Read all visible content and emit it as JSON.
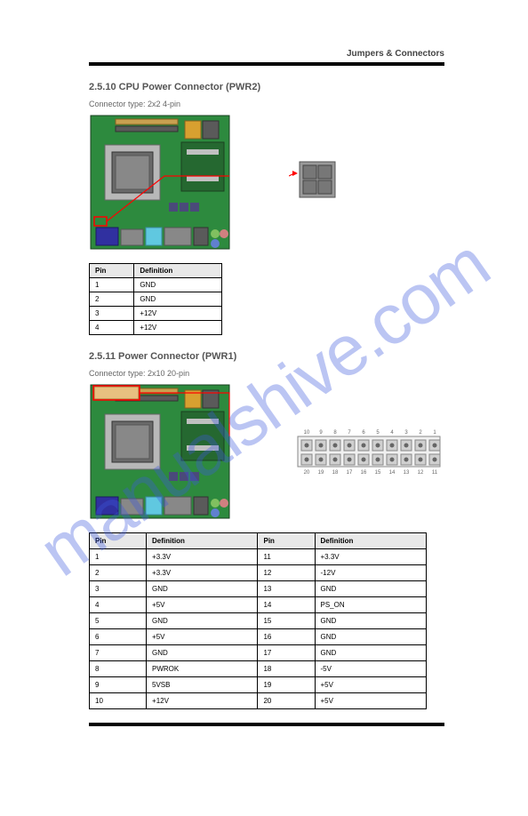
{
  "header": {
    "title": "Jumpers & Connectors"
  },
  "watermark": "manualshive.com",
  "section1": {
    "title": "2.5.10  CPU Power Connector (PWR2)",
    "subtitle": "Connector type: 2x2 4-pin",
    "pcb_color": "#2d8a3e",
    "pcb_dark": "#1e5c2a",
    "socket_color": "#b8b8b8",
    "chip_color": "#5a5a5a",
    "highlight": "#ff0000",
    "arrow_color": "#ff0000",
    "conn_body": "#888888",
    "conn_pin": "#6a6a6a",
    "table": {
      "headers": [
        "Pin",
        "Definition"
      ],
      "rows": [
        [
          "1",
          "GND"
        ],
        [
          "2",
          "GND"
        ],
        [
          "3",
          "+12V"
        ],
        [
          "4",
          "+12V"
        ]
      ]
    }
  },
  "section2": {
    "title": "2.5.11  Power Connector (PWR1)",
    "subtitle": "Connector type: 2x10 20-pin",
    "pcb_color": "#2d8a3e",
    "conn_body": "#e8e8e8",
    "conn_pin": "#888",
    "conn_labels_top": [
      "10",
      "9",
      "8",
      "7",
      "6",
      "5",
      "4",
      "3",
      "2",
      "1"
    ],
    "conn_labels_bot": [
      "20",
      "19",
      "18",
      "17",
      "16",
      "15",
      "14",
      "13",
      "12",
      "11"
    ],
    "table": {
      "headers": [
        "Pin",
        "Definition",
        "Pin",
        "Definition"
      ],
      "rows": [
        [
          "1",
          "+3.3V",
          "11",
          "+3.3V"
        ],
        [
          "2",
          "+3.3V",
          "12",
          "-12V"
        ],
        [
          "3",
          "GND",
          "13",
          "GND"
        ],
        [
          "4",
          "+5V",
          "14",
          "PS_ON"
        ],
        [
          "5",
          "GND",
          "15",
          "GND"
        ],
        [
          "6",
          "+5V",
          "16",
          "GND"
        ],
        [
          "7",
          "GND",
          "17",
          "GND"
        ],
        [
          "8",
          "PWROK",
          "18",
          "-5V"
        ],
        [
          "9",
          "5VSB",
          "19",
          "+5V"
        ],
        [
          "10",
          "+12V",
          "20",
          "+5V"
        ]
      ]
    }
  },
  "footer": {
    "copyright": "",
    "page": ""
  }
}
